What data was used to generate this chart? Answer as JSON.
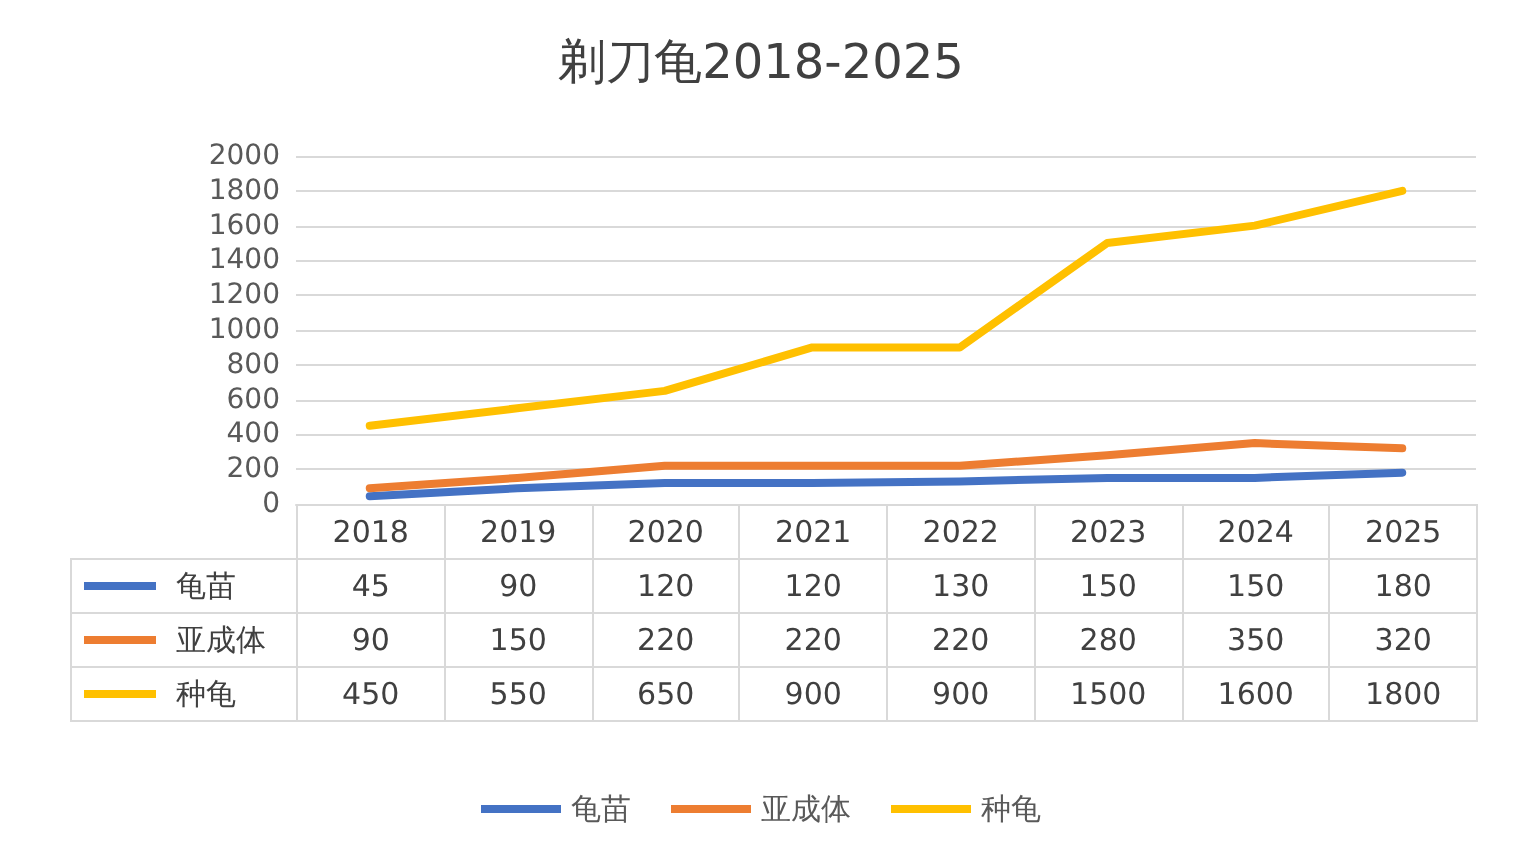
{
  "chart_data": {
    "type": "line",
    "title": "剃刀龟2018-2025",
    "categories": [
      "2018",
      "2019",
      "2020",
      "2021",
      "2022",
      "2023",
      "2024",
      "2025"
    ],
    "series": [
      {
        "name": "龟苗",
        "color": "#4472c4",
        "values": [
          45,
          90,
          120,
          120,
          130,
          150,
          150,
          180
        ]
      },
      {
        "name": "亚成体",
        "color": "#ed7d31",
        "values": [
          90,
          150,
          220,
          220,
          220,
          280,
          350,
          320
        ]
      },
      {
        "name": "种龟",
        "color": "#ffc000",
        "values": [
          450,
          550,
          650,
          900,
          900,
          1500,
          1600,
          1800
        ]
      }
    ],
    "ylim": [
      0,
      2000
    ],
    "yticks": [
      0,
      200,
      400,
      600,
      800,
      1000,
      1200,
      1400,
      1600,
      1800,
      2000
    ],
    "grid": "y",
    "legend": "bottom",
    "marker": "none",
    "line_style": "solid",
    "data_labels": true
  }
}
